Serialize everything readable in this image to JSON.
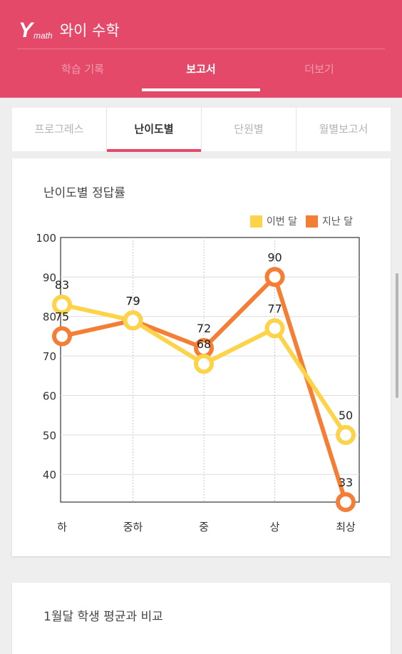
{
  "app": {
    "logo": "Y",
    "logo_sub": "math",
    "title": "와이 수학"
  },
  "main_tabs": [
    {
      "label": "학습 기록"
    },
    {
      "label": "보고서"
    },
    {
      "label": "더보기"
    }
  ],
  "sub_tabs": [
    {
      "label": "프로그레스"
    },
    {
      "label": "난이도별"
    },
    {
      "label": "단원별"
    },
    {
      "label": "월별보고서"
    }
  ],
  "card1": {
    "title": "난이도별 정답률"
  },
  "card2": {
    "title": "1월달 학생 평균과 비교"
  },
  "colors": {
    "header": "#e5496a",
    "this_month": "#fcd349",
    "last_month": "#f47e35"
  },
  "chart_data": {
    "type": "line",
    "title": "난이도별 정답률",
    "categories": [
      "하",
      "중하",
      "중",
      "상",
      "최상"
    ],
    "series": [
      {
        "name": "이번 달",
        "color": "#fcd349",
        "values": [
          83,
          79,
          68,
          77,
          50
        ]
      },
      {
        "name": "지난 달",
        "color": "#f47e35",
        "values": [
          75,
          79,
          72,
          90,
          33
        ]
      }
    ],
    "yticks": [
      40,
      50,
      60,
      70,
      80,
      90,
      100
    ],
    "ylim": [
      33,
      100
    ],
    "legend": "top-right",
    "grid": true
  }
}
